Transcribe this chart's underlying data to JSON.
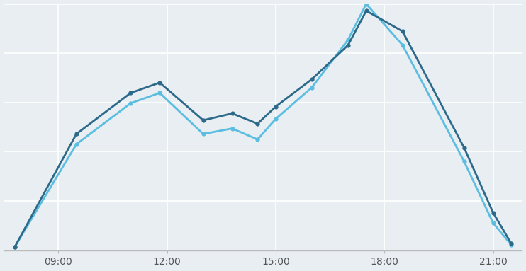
{
  "background_color": "#e8eef2",
  "grid_color": "#ffffff",
  "line1_color": "#2d6a8a",
  "line2_color": "#5bbde0",
  "x_ticks_labels": [
    "09:00",
    "12:00",
    "15:00",
    "18:00",
    "21:00"
  ],
  "x_ticks_pos": [
    9,
    12,
    15,
    18,
    21
  ],
  "xlim": [
    7.5,
    21.8
  ],
  "ylim": [
    0,
    360
  ],
  "figsize": [
    7.42,
    3.83
  ],
  "dpi": 100,
  "dark_x": [
    7.8,
    9.5,
    11.0,
    11.8,
    13.0,
    13.8,
    14.5,
    15.0,
    16.0,
    17.0,
    17.5,
    18.5,
    20.2,
    21.0,
    21.5
  ],
  "dark_y": [
    5,
    170,
    230,
    245,
    190,
    200,
    185,
    210,
    250,
    300,
    350,
    320,
    150,
    55,
    10
  ],
  "light_x": [
    7.8,
    9.5,
    11.0,
    11.8,
    13.0,
    13.8,
    14.5,
    15.0,
    16.0,
    17.0,
    17.5,
    18.5,
    20.2,
    21.0,
    21.5
  ],
  "light_y": [
    5,
    155,
    215,
    230,
    170,
    178,
    162,
    192,
    238,
    308,
    360,
    300,
    130,
    40,
    8
  ]
}
